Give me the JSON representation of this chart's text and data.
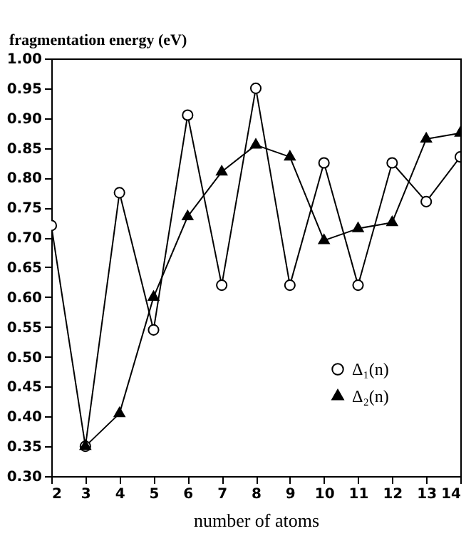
{
  "chart_data": {
    "type": "line",
    "ylabel": "fragmentation energy (eV)",
    "xlabel": "number of atoms",
    "x": [
      2,
      3,
      4,
      5,
      6,
      7,
      8,
      9,
      10,
      11,
      12,
      13,
      14
    ],
    "series": [
      {
        "name": "Δ₁(n)",
        "color": "#000000",
        "marker": "circle",
        "values": [
          0.72,
          0.35,
          0.775,
          0.545,
          0.905,
          0.62,
          0.95,
          0.62,
          0.825,
          0.62,
          0.825,
          0.76,
          0.835
        ]
      },
      {
        "name": "Δ₂(n)",
        "color": "#000000",
        "marker": "triangle",
        "values": [
          null,
          0.35,
          0.405,
          0.6,
          0.735,
          0.81,
          0.855,
          0.835,
          0.695,
          0.715,
          0.725,
          0.865,
          0.875
        ]
      }
    ],
    "xlim": [
      2,
      14
    ],
    "xticks": [
      2,
      3,
      4,
      5,
      6,
      7,
      8,
      9,
      10,
      11,
      12,
      13,
      14
    ],
    "ylim": [
      0.3,
      1.0
    ],
    "yticks": [
      {
        "value": 0.3,
        "label": "0.30"
      },
      {
        "value": 0.35,
        "label": "0.35"
      },
      {
        "value": 0.4,
        "label": "0.40"
      },
      {
        "value": 0.45,
        "label": "0.45"
      },
      {
        "value": 0.5,
        "label": "0.50"
      },
      {
        "value": 0.55,
        "label": "0.55"
      },
      {
        "value": 0.6,
        "label": "0.60"
      },
      {
        "value": 0.65,
        "label": "0.65"
      },
      {
        "value": 0.7,
        "label": "0.70"
      },
      {
        "value": 0.75,
        "label": "0.75"
      },
      {
        "value": 0.8,
        "label": "0.80"
      },
      {
        "value": 0.85,
        "label": "0.85"
      },
      {
        "value": 0.9,
        "label": "0.90"
      },
      {
        "value": 0.95,
        "label": "0.95"
      },
      {
        "value": 1.0,
        "label": "1.00"
      }
    ],
    "legend": "bottom right",
    "line_style": "solid",
    "grid": false
  }
}
